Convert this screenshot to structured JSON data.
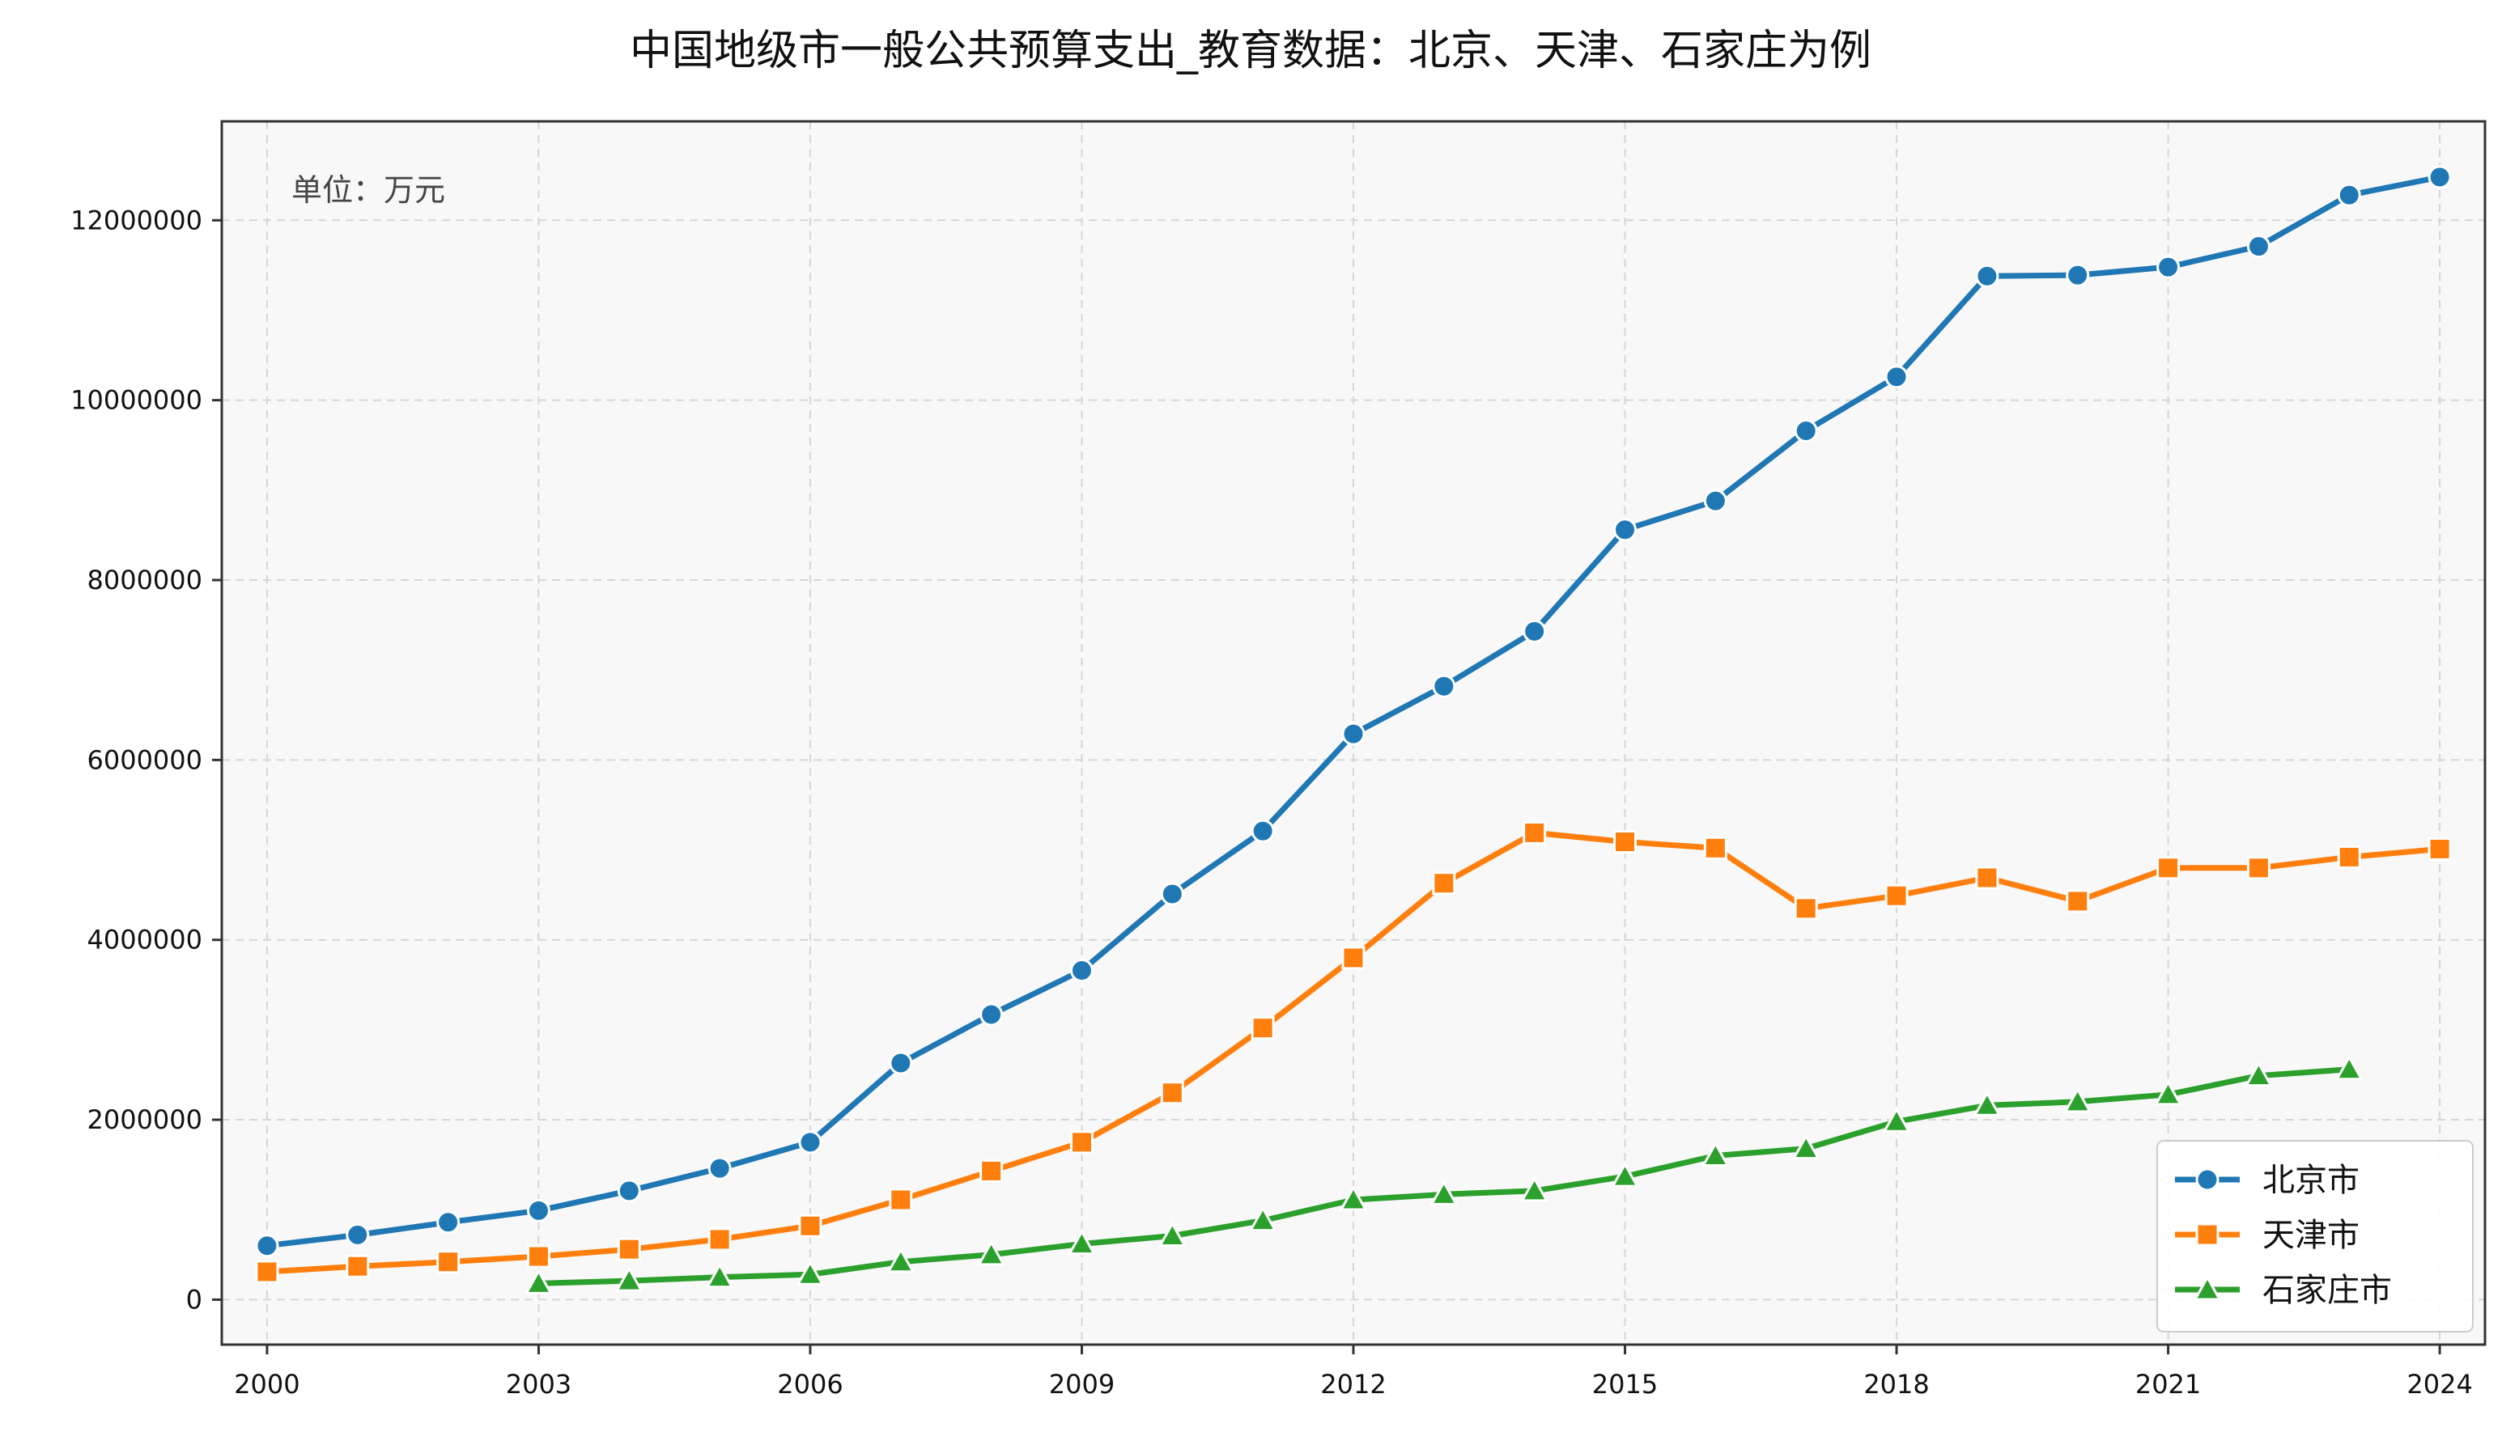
{
  "chart_data": {
    "type": "line",
    "title": "中国地级市一般公共预算支出_教育数据：北京、天津、石家庄为例",
    "annotation": "单位：万元",
    "xlabel": "",
    "ylabel": "",
    "xlim": [
      1999.5,
      2024.5
    ],
    "ylim": [
      -500000,
      13100000
    ],
    "x_ticks": [
      2000,
      2003,
      2006,
      2009,
      2012,
      2015,
      2018,
      2021,
      2024
    ],
    "y_ticks": [
      0,
      2000000,
      4000000,
      6000000,
      8000000,
      10000000,
      12000000
    ],
    "grid": true,
    "legend_position": "bottom-right",
    "series": [
      {
        "name": "北京市",
        "color": "#1f77b4",
        "marker": "circle",
        "x": [
          2000,
          2001,
          2002,
          2003,
          2004,
          2005,
          2006,
          2007,
          2008,
          2009,
          2010,
          2011,
          2012,
          2013,
          2014,
          2015,
          2016,
          2017,
          2018,
          2019,
          2020,
          2021,
          2022,
          2023,
          2024
        ],
        "y": [
          600000,
          720000,
          860000,
          990000,
          1210000,
          1460000,
          1750000,
          2630000,
          3170000,
          3660000,
          4510000,
          5210000,
          6290000,
          6820000,
          7430000,
          8560000,
          8880000,
          9660000,
          10260000,
          11380000,
          11390000,
          11480000,
          11710000,
          12280000,
          12480000
        ]
      },
      {
        "name": "天津市",
        "color": "#ff7f0e",
        "marker": "square",
        "x": [
          2000,
          2001,
          2002,
          2003,
          2004,
          2005,
          2006,
          2007,
          2008,
          2009,
          2010,
          2011,
          2012,
          2013,
          2014,
          2015,
          2016,
          2017,
          2018,
          2019,
          2020,
          2021,
          2022,
          2023,
          2024
        ],
        "y": [
          310000,
          370000,
          420000,
          480000,
          560000,
          670000,
          820000,
          1110000,
          1430000,
          1750000,
          2300000,
          3020000,
          3800000,
          4630000,
          5190000,
          5090000,
          5020000,
          4350000,
          4490000,
          4690000,
          4430000,
          4800000,
          4800000,
          4920000,
          5010000
        ]
      },
      {
        "name": "石家庄市",
        "color": "#2ca02c",
        "marker": "triangle",
        "x": [
          2003,
          2004,
          2005,
          2006,
          2007,
          2008,
          2009,
          2010,
          2011,
          2012,
          2013,
          2014,
          2015,
          2016,
          2017,
          2018,
          2019,
          2020,
          2021,
          2022,
          2023
        ],
        "y": [
          180000,
          210000,
          250000,
          280000,
          420000,
          500000,
          620000,
          710000,
          880000,
          1110000,
          1170000,
          1210000,
          1370000,
          1600000,
          1680000,
          1980000,
          2160000,
          2200000,
          2280000,
          2490000,
          2560000
        ]
      }
    ]
  }
}
